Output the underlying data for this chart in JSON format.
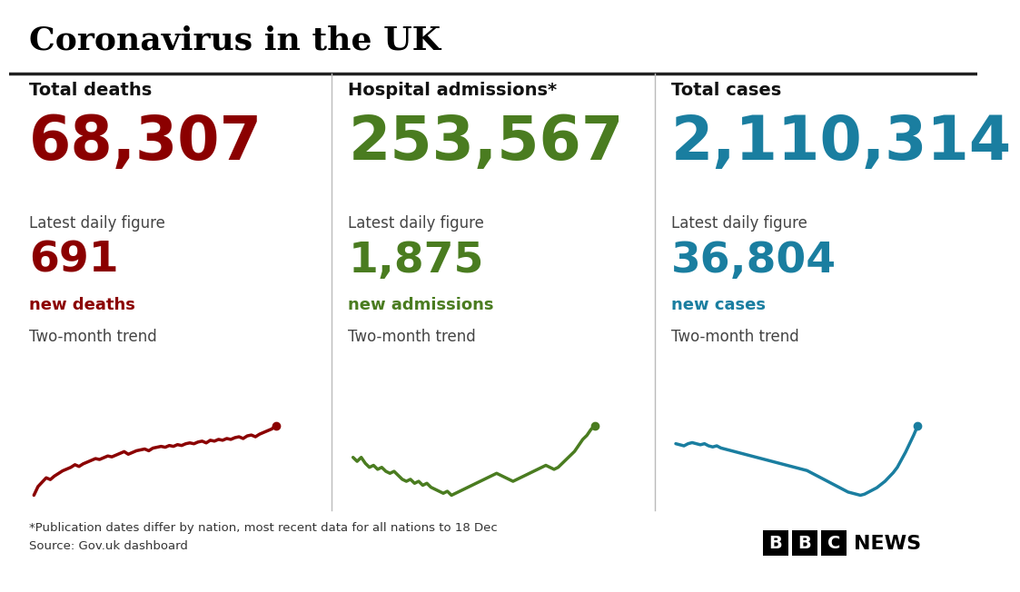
{
  "title": "Coronavirus in the UK",
  "bg_color": "#ffffff",
  "title_color": "#000000",
  "divider_color": "#222222",
  "panels": [
    {
      "label": "Total deaths",
      "main_value": "68,307",
      "main_color": "#8B0000",
      "daily_label": "Latest daily figure",
      "daily_value": "691",
      "daily_color": "#8B0000",
      "daily_suffix": "new deaths",
      "trend_label": "Two-month trend",
      "trend_color": "#8B0000",
      "trend_x": [
        0,
        1,
        2,
        3,
        4,
        5,
        6,
        7,
        8,
        9,
        10,
        11,
        12,
        13,
        14,
        15,
        16,
        17,
        18,
        19,
        20,
        21,
        22,
        23,
        24,
        25,
        26,
        27,
        28,
        29,
        30,
        31,
        32,
        33,
        34,
        35,
        36,
        37,
        38,
        39,
        40,
        41,
        42,
        43,
        44,
        45,
        46,
        47,
        48,
        49,
        50,
        51,
        52,
        53,
        54,
        55,
        56,
        57,
        58,
        59
      ],
      "trend_y": [
        0.05,
        0.15,
        0.2,
        0.25,
        0.23,
        0.27,
        0.3,
        0.33,
        0.35,
        0.37,
        0.4,
        0.38,
        0.41,
        0.43,
        0.45,
        0.47,
        0.46,
        0.48,
        0.5,
        0.49,
        0.51,
        0.53,
        0.55,
        0.52,
        0.54,
        0.56,
        0.57,
        0.58,
        0.56,
        0.59,
        0.6,
        0.61,
        0.6,
        0.62,
        0.61,
        0.63,
        0.62,
        0.64,
        0.65,
        0.64,
        0.66,
        0.67,
        0.65,
        0.68,
        0.67,
        0.69,
        0.68,
        0.7,
        0.69,
        0.71,
        0.72,
        0.7,
        0.73,
        0.74,
        0.72,
        0.75,
        0.77,
        0.79,
        0.81,
        0.85
      ]
    },
    {
      "label": "Hospital admissions*",
      "main_value": "253,567",
      "main_color": "#4a7c20",
      "daily_label": "Latest daily figure",
      "daily_value": "1,875",
      "daily_color": "#4a7c20",
      "daily_suffix": "new admissions",
      "trend_label": "Two-month trend",
      "trend_color": "#4a7c20",
      "trend_x": [
        0,
        1,
        2,
        3,
        4,
        5,
        6,
        7,
        8,
        9,
        10,
        11,
        12,
        13,
        14,
        15,
        16,
        17,
        18,
        19,
        20,
        21,
        22,
        23,
        24,
        25,
        26,
        27,
        28,
        29,
        30,
        31,
        32,
        33,
        34,
        35,
        36,
        37,
        38,
        39,
        40,
        41,
        42,
        43,
        44,
        45,
        46,
        47,
        48,
        49,
        50,
        51,
        52,
        53,
        54,
        55,
        56,
        57,
        58,
        59
      ],
      "trend_y": [
        0.55,
        0.53,
        0.55,
        0.52,
        0.5,
        0.51,
        0.49,
        0.5,
        0.48,
        0.47,
        0.48,
        0.46,
        0.44,
        0.43,
        0.44,
        0.42,
        0.43,
        0.41,
        0.42,
        0.4,
        0.39,
        0.38,
        0.37,
        0.38,
        0.36,
        0.37,
        0.38,
        0.39,
        0.4,
        0.41,
        0.42,
        0.43,
        0.44,
        0.45,
        0.46,
        0.47,
        0.46,
        0.45,
        0.44,
        0.43,
        0.44,
        0.45,
        0.46,
        0.47,
        0.48,
        0.49,
        0.5,
        0.51,
        0.5,
        0.49,
        0.5,
        0.52,
        0.54,
        0.56,
        0.58,
        0.61,
        0.64,
        0.66,
        0.69,
        0.71
      ]
    },
    {
      "label": "Total cases",
      "main_value": "2,110,314",
      "main_color": "#1a7ea0",
      "daily_label": "Latest daily figure",
      "daily_value": "36,804",
      "daily_color": "#1a7ea0",
      "daily_suffix": "new cases",
      "trend_label": "Two-month trend",
      "trend_color": "#1a7ea0",
      "trend_x": [
        0,
        1,
        2,
        3,
        4,
        5,
        6,
        7,
        8,
        9,
        10,
        11,
        12,
        13,
        14,
        15,
        16,
        17,
        18,
        19,
        20,
        21,
        22,
        23,
        24,
        25,
        26,
        27,
        28,
        29,
        30,
        31,
        32,
        33,
        34,
        35,
        36,
        37,
        38,
        39,
        40,
        41,
        42,
        43,
        44,
        45,
        46,
        47,
        48,
        49,
        50,
        51,
        52,
        53,
        54,
        55,
        56,
        57,
        58,
        59
      ],
      "trend_y": [
        0.65,
        0.64,
        0.63,
        0.65,
        0.66,
        0.65,
        0.64,
        0.65,
        0.63,
        0.62,
        0.63,
        0.61,
        0.6,
        0.59,
        0.58,
        0.57,
        0.56,
        0.55,
        0.54,
        0.53,
        0.52,
        0.51,
        0.5,
        0.49,
        0.48,
        0.47,
        0.46,
        0.45,
        0.44,
        0.43,
        0.42,
        0.41,
        0.4,
        0.38,
        0.36,
        0.34,
        0.32,
        0.3,
        0.28,
        0.26,
        0.24,
        0.22,
        0.2,
        0.19,
        0.18,
        0.17,
        0.18,
        0.2,
        0.22,
        0.24,
        0.27,
        0.3,
        0.34,
        0.38,
        0.43,
        0.5,
        0.57,
        0.65,
        0.73,
        0.82
      ]
    }
  ],
  "footnote1": "*Publication dates differ by nation, most recent data for all nations to 18 Dec",
  "footnote2": "Source: Gov.uk dashboard",
  "footnote_color": "#333333"
}
